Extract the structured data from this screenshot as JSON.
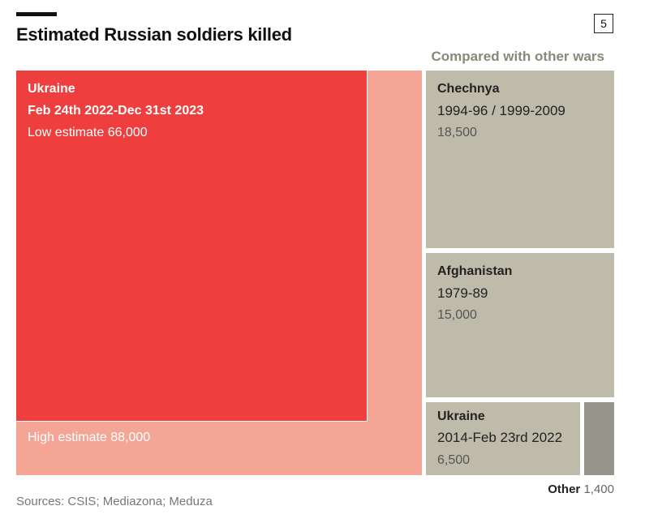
{
  "header": {
    "title": "Estimated Russian soldiers killed",
    "badge": "5",
    "subtitle": "Compared with other wars"
  },
  "chart_data": {
    "type": "treemap",
    "title": "Estimated Russian soldiers killed",
    "units": "soldiers killed",
    "series": [
      {
        "name": "Ukraine",
        "period": "Feb 24th 2022-Dec 31st 2023",
        "low_label": "Low estimate 66,000",
        "high_label": "High estimate 88,000",
        "low_estimate": 66000,
        "high_estimate": 88000,
        "color_low": "#ef3e3e",
        "color_high": "#f4a596"
      },
      {
        "name": "Chechnya",
        "period": "1994-96 / 1999-2009",
        "value_label": "18,500",
        "value": 18500,
        "color": "#bebbab"
      },
      {
        "name": "Afghanistan",
        "period": "1979-89",
        "value_label": "15,000",
        "value": 15000,
        "color": "#bebbab"
      },
      {
        "name": "Ukraine",
        "period": "2014-Feb 23rd 2022",
        "value_label": "6,500",
        "value": 6500,
        "color": "#bebbab"
      },
      {
        "name": "Other",
        "value_label": "1,400",
        "value": 1400,
        "color": "#97958a"
      }
    ]
  },
  "footer": {
    "sources": "Sources: CSIS; Mediazona; Meduza"
  }
}
